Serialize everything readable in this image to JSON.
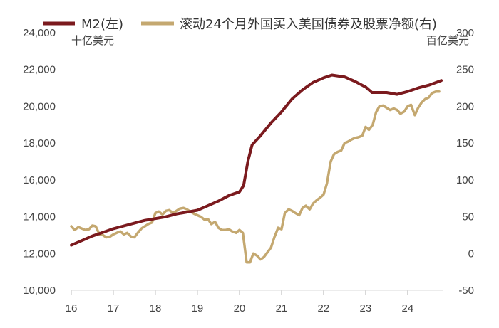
{
  "chart_data": {
    "type": "line",
    "legend_position": "top",
    "grid": false,
    "x": {
      "ticks": [
        "16",
        "17",
        "18",
        "19",
        "20",
        "21",
        "22",
        "23",
        "24"
      ],
      "range": [
        2016,
        2024.85
      ]
    },
    "y_left": {
      "unit": "十亿美元",
      "ticks": [
        "10,000",
        "12,000",
        "14,000",
        "16,000",
        "18,000",
        "20,000",
        "22,000",
        "24,000"
      ],
      "range": [
        10000,
        24000
      ]
    },
    "y_right": {
      "unit": "百亿美元",
      "ticks": [
        "-50",
        "0",
        "50",
        "100",
        "150",
        "200",
        "250",
        "300"
      ],
      "range": [
        -50,
        300
      ]
    },
    "series": [
      {
        "name": "M2(左)",
        "axis": "left",
        "color": "#7b1a1e",
        "points": [
          [
            2016.0,
            12450
          ],
          [
            2016.25,
            12700
          ],
          [
            2016.5,
            12950
          ],
          [
            2016.75,
            13150
          ],
          [
            2017.0,
            13350
          ],
          [
            2017.25,
            13500
          ],
          [
            2017.5,
            13650
          ],
          [
            2017.75,
            13800
          ],
          [
            2018.0,
            13900
          ],
          [
            2018.25,
            14000
          ],
          [
            2018.5,
            14150
          ],
          [
            2018.75,
            14250
          ],
          [
            2019.0,
            14350
          ],
          [
            2019.25,
            14600
          ],
          [
            2019.5,
            14850
          ],
          [
            2019.75,
            15150
          ],
          [
            2020.0,
            15350
          ],
          [
            2020.1,
            15700
          ],
          [
            2020.2,
            17000
          ],
          [
            2020.3,
            17900
          ],
          [
            2020.5,
            18400
          ],
          [
            2020.75,
            19100
          ],
          [
            2021.0,
            19700
          ],
          [
            2021.25,
            20400
          ],
          [
            2021.5,
            20900
          ],
          [
            2021.75,
            21300
          ],
          [
            2022.0,
            21550
          ],
          [
            2022.2,
            21700
          ],
          [
            2022.5,
            21600
          ],
          [
            2022.75,
            21350
          ],
          [
            2023.0,
            21050
          ],
          [
            2023.15,
            20750
          ],
          [
            2023.5,
            20750
          ],
          [
            2023.75,
            20650
          ],
          [
            2024.0,
            20800
          ],
          [
            2024.25,
            21000
          ],
          [
            2024.5,
            21150
          ],
          [
            2024.8,
            21400
          ]
        ]
      },
      {
        "name": "滚动24个月外国买入美国债券及股票净额(右)",
        "axis": "right",
        "color": "#c4a870",
        "points": [
          [
            2016.0,
            37
          ],
          [
            2016.08,
            32
          ],
          [
            2016.17,
            36
          ],
          [
            2016.25,
            34
          ],
          [
            2016.33,
            32
          ],
          [
            2016.42,
            33
          ],
          [
            2016.5,
            38
          ],
          [
            2016.58,
            37
          ],
          [
            2016.67,
            26
          ],
          [
            2016.75,
            25
          ],
          [
            2016.83,
            22
          ],
          [
            2016.92,
            23
          ],
          [
            2017.0,
            26
          ],
          [
            2017.08,
            28
          ],
          [
            2017.17,
            30
          ],
          [
            2017.25,
            26
          ],
          [
            2017.33,
            28
          ],
          [
            2017.42,
            23
          ],
          [
            2017.5,
            22
          ],
          [
            2017.58,
            28
          ],
          [
            2017.67,
            34
          ],
          [
            2017.75,
            37
          ],
          [
            2017.83,
            40
          ],
          [
            2017.92,
            42
          ],
          [
            2018.0,
            55
          ],
          [
            2018.08,
            57
          ],
          [
            2018.17,
            53
          ],
          [
            2018.25,
            58
          ],
          [
            2018.33,
            59
          ],
          [
            2018.42,
            55
          ],
          [
            2018.5,
            58
          ],
          [
            2018.58,
            61
          ],
          [
            2018.67,
            62
          ],
          [
            2018.75,
            60
          ],
          [
            2018.83,
            57
          ],
          [
            2018.92,
            54
          ],
          [
            2019.0,
            52
          ],
          [
            2019.08,
            50
          ],
          [
            2019.17,
            46
          ],
          [
            2019.25,
            47
          ],
          [
            2019.33,
            40
          ],
          [
            2019.42,
            43
          ],
          [
            2019.5,
            35
          ],
          [
            2019.58,
            32
          ],
          [
            2019.67,
            32
          ],
          [
            2019.75,
            33
          ],
          [
            2019.83,
            30
          ],
          [
            2019.92,
            28
          ],
          [
            2020.0,
            32
          ],
          [
            2020.08,
            28
          ],
          [
            2020.17,
            -12
          ],
          [
            2020.25,
            -12
          ],
          [
            2020.33,
            0
          ],
          [
            2020.42,
            -3
          ],
          [
            2020.5,
            -8
          ],
          [
            2020.58,
            -5
          ],
          [
            2020.67,
            2
          ],
          [
            2020.75,
            8
          ],
          [
            2020.83,
            22
          ],
          [
            2020.92,
            35
          ],
          [
            2021.0,
            33
          ],
          [
            2021.08,
            55
          ],
          [
            2021.17,
            60
          ],
          [
            2021.25,
            58
          ],
          [
            2021.33,
            55
          ],
          [
            2021.42,
            52
          ],
          [
            2021.5,
            62
          ],
          [
            2021.58,
            65
          ],
          [
            2021.67,
            60
          ],
          [
            2021.75,
            68
          ],
          [
            2021.83,
            72
          ],
          [
            2021.92,
            76
          ],
          [
            2022.0,
            80
          ],
          [
            2022.08,
            95
          ],
          [
            2022.17,
            125
          ],
          [
            2022.25,
            135
          ],
          [
            2022.33,
            138
          ],
          [
            2022.42,
            140
          ],
          [
            2022.5,
            150
          ],
          [
            2022.58,
            152
          ],
          [
            2022.67,
            155
          ],
          [
            2022.75,
            157
          ],
          [
            2022.83,
            158
          ],
          [
            2022.92,
            160
          ],
          [
            2023.0,
            172
          ],
          [
            2023.08,
            168
          ],
          [
            2023.17,
            175
          ],
          [
            2023.25,
            192
          ],
          [
            2023.33,
            200
          ],
          [
            2023.42,
            201
          ],
          [
            2023.5,
            198
          ],
          [
            2023.58,
            195
          ],
          [
            2023.67,
            197
          ],
          [
            2023.75,
            195
          ],
          [
            2023.83,
            190
          ],
          [
            2023.92,
            193
          ],
          [
            2024.0,
            200
          ],
          [
            2024.08,
            202
          ],
          [
            2024.17,
            188
          ],
          [
            2024.25,
            198
          ],
          [
            2024.33,
            205
          ],
          [
            2024.42,
            210
          ],
          [
            2024.5,
            212
          ],
          [
            2024.58,
            218
          ],
          [
            2024.67,
            220
          ],
          [
            2024.75,
            220
          ]
        ]
      }
    ]
  }
}
